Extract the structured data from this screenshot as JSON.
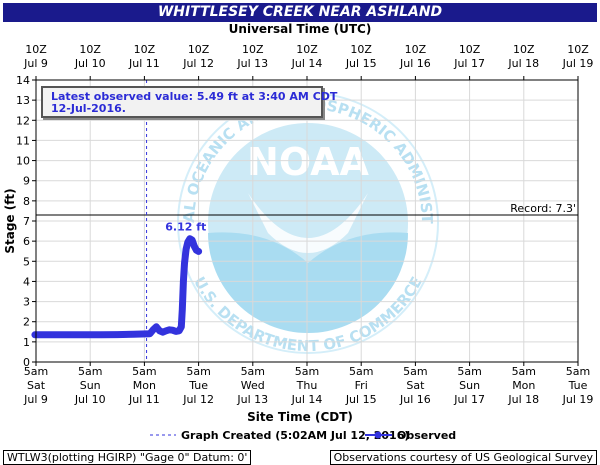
{
  "chart_data": {
    "type": "line",
    "title": "WHITTLESEY CREEK NEAR ASHLAND",
    "top_axis_title": "Universal Time (UTC)",
    "bottom_axis_title": "Site Time (CDT)",
    "ylabel": "Stage (ft)",
    "ylim": [
      0,
      14
    ],
    "y_ticks": [
      0,
      1,
      2,
      3,
      4,
      5,
      6,
      7,
      8,
      9,
      10,
      11,
      12,
      13,
      14
    ],
    "grid": true,
    "top_ticks": [
      [
        "10Z",
        "Jul  9"
      ],
      [
        "10Z",
        "Jul 10"
      ],
      [
        "10Z",
        "Jul 11"
      ],
      [
        "10Z",
        "Jul 12"
      ],
      [
        "10Z",
        "Jul 13"
      ],
      [
        "10Z",
        "Jul 14"
      ],
      [
        "10Z",
        "Jul 15"
      ],
      [
        "10Z",
        "Jul 16"
      ],
      [
        "10Z",
        "Jul 17"
      ],
      [
        "10Z",
        "Jul 18"
      ],
      [
        "10Z",
        "Jul 19"
      ]
    ],
    "bottom_ticks": [
      [
        "5am",
        "Sat",
        "Jul 9"
      ],
      [
        "5am",
        "Sun",
        "Jul 10"
      ],
      [
        "5am",
        "Mon",
        "Jul 11"
      ],
      [
        "5am",
        "Tue",
        "Jul 12"
      ],
      [
        "5am",
        "Wed",
        "Jul 13"
      ],
      [
        "5am",
        "Thu",
        "Jul 14"
      ],
      [
        "5am",
        "Fri",
        "Jul 15"
      ],
      [
        "5am",
        "Sat",
        "Jul 16"
      ],
      [
        "5am",
        "Sun",
        "Jul 17"
      ],
      [
        "5am",
        "Mon",
        "Jul 18"
      ],
      [
        "5am",
        "Tue",
        "Jul 19"
      ]
    ],
    "record": {
      "label": "Record: 7.3'",
      "value": 7.3
    },
    "graph_created": {
      "label": "Graph Created (5:02AM Jul 12, 2016)",
      "day": 2.04
    },
    "peak_label": {
      "text": "6.12 ft",
      "day": 2.8,
      "value": 6.12
    },
    "series": [
      {
        "name": "Observed",
        "color": "#3333dd",
        "points": [
          [
            -0.02,
            1.35
          ],
          [
            0.3,
            1.35
          ],
          [
            0.6,
            1.35
          ],
          [
            0.9,
            1.35
          ],
          [
            1.2,
            1.35
          ],
          [
            1.5,
            1.36
          ],
          [
            1.8,
            1.38
          ],
          [
            2.1,
            1.4
          ],
          [
            2.1,
            1.4
          ],
          [
            2.16,
            1.6
          ],
          [
            2.22,
            1.75
          ],
          [
            2.28,
            1.55
          ],
          [
            2.34,
            1.48
          ],
          [
            2.4,
            1.55
          ],
          [
            2.46,
            1.6
          ],
          [
            2.52,
            1.58
          ],
          [
            2.58,
            1.52
          ],
          [
            2.64,
            1.55
          ],
          [
            2.68,
            1.75
          ],
          [
            2.7,
            2.6
          ],
          [
            2.72,
            4.0
          ],
          [
            2.74,
            4.9
          ],
          [
            2.77,
            5.6
          ],
          [
            2.8,
            5.95
          ],
          [
            2.84,
            6.12
          ],
          [
            2.88,
            6.05
          ],
          [
            2.92,
            5.75
          ],
          [
            2.96,
            5.55
          ],
          [
            3.0,
            5.49
          ]
        ]
      }
    ],
    "legend": {
      "created_label": "Graph Created (5:02AM Jul 12, 2016)",
      "observed_label": "Observed"
    }
  },
  "latest_observed": {
    "line1": "Latest observed value: 5.49 ft at 3:40 AM CDT",
    "line2": "12-Jul-2016."
  },
  "footer": {
    "left": "WTLW3(plotting HGIRP) \"Gage 0\" Datum:  0'",
    "right": "Observations courtesy of US Geological Survey"
  },
  "watermark": {
    "logo_text": "NOAA",
    "ring_text": "NATIONAL OCEANIC AND ATMOSPHERIC ADMINISTRATION",
    "ring_text_bottom": "U.S. DEPARTMENT OF COMMERCE"
  },
  "colors": {
    "title_bar": "#1a1a8c",
    "series": "#3333dd",
    "watermark": "#bfe6f7"
  }
}
